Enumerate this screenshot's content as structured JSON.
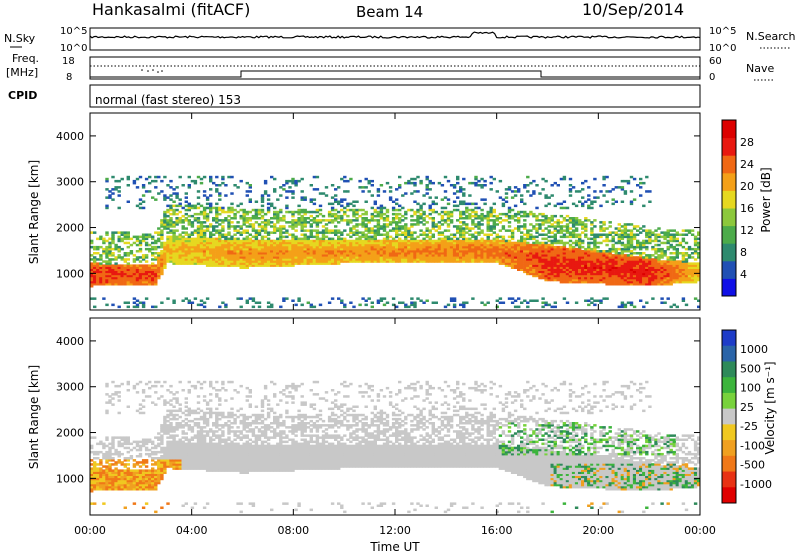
{
  "header": {
    "station": "Hankasalmi (fitACF)",
    "beam": "Beam 14",
    "date": "10/Sep/2014"
  },
  "labels": {
    "nsky": "N.Sky",
    "nsearch": "N.Search",
    "freq_line1": "Freq.",
    "freq_line2": "[MHz]",
    "nave": "Nave",
    "cpid": "CPID",
    "cpid_text": "normal (fast stereo) 153",
    "noise_ticks_left": [
      "10^5",
      "10^0"
    ],
    "noise_ticks_right": [
      "10^5",
      "10^0"
    ],
    "freq_ticks": [
      "18",
      "8"
    ],
    "nave_ticks": [
      "60",
      "0"
    ]
  },
  "chart_data": [
    {
      "type": "heatmap",
      "panel": "power",
      "ylabel": "Slant Range [km]",
      "xlabel": "",
      "ylim": [
        200,
        4500
      ],
      "yticks": [
        "1000",
        "2000",
        "3000",
        "4000"
      ],
      "colorbar": {
        "label": "Power [dB]",
        "ticks": [
          "4",
          "8",
          "12",
          "16",
          "20",
          "24",
          "28"
        ],
        "range": [
          0,
          32
        ],
        "colors": [
          "#1010e6",
          "#2050b4",
          "#2e8a6e",
          "#4cab4a",
          "#8cc83c",
          "#e6d820",
          "#f4a018",
          "#f06814",
          "#e81810",
          "#dc0000"
        ]
      },
      "bands_kmrange_by_hour": [
        {
          "x": 0.0,
          "low": 700,
          "high": 1200,
          "level": 27
        },
        {
          "x": 2.5,
          "low": 720,
          "high": 1150,
          "level": 26
        },
        {
          "x": 3.0,
          "low": 1200,
          "high": 1800,
          "level": 20
        },
        {
          "x": 6.0,
          "low": 1100,
          "high": 1700,
          "level": 22
        },
        {
          "x": 10.0,
          "low": 1200,
          "high": 1700,
          "level": 22
        },
        {
          "x": 16.0,
          "low": 1200,
          "high": 1700,
          "level": 24
        },
        {
          "x": 18.0,
          "low": 800,
          "high": 1600,
          "level": 27
        },
        {
          "x": 22.0,
          "low": 700,
          "high": 1300,
          "level": 28
        },
        {
          "x": 24.0,
          "low": 800,
          "high": 1200,
          "level": 20
        }
      ]
    },
    {
      "type": "heatmap",
      "panel": "velocity",
      "ylabel": "Slant Range [km]",
      "xlabel": "Time UT",
      "xlim": [
        0,
        24
      ],
      "xticks": [
        "00:00",
        "04:00",
        "08:00",
        "12:00",
        "16:00",
        "20:00",
        "00:00"
      ],
      "ylim": [
        200,
        4500
      ],
      "yticks": [
        "1000",
        "2000",
        "3000",
        "4000"
      ],
      "colorbar": {
        "label": "Velocity [m s⁻¹]",
        "ticks": [
          "1000",
          "500",
          "100",
          "25",
          "-25",
          "-100",
          "-500",
          "-1000"
        ],
        "colors": [
          "#1e3cc8",
          "#2a64a8",
          "#2e8a5a",
          "#3cb43c",
          "#78d23c",
          "#c8c8c8",
          "#f0c820",
          "#f0a020",
          "#f07818",
          "#e83214",
          "#e00000"
        ]
      }
    }
  ]
}
